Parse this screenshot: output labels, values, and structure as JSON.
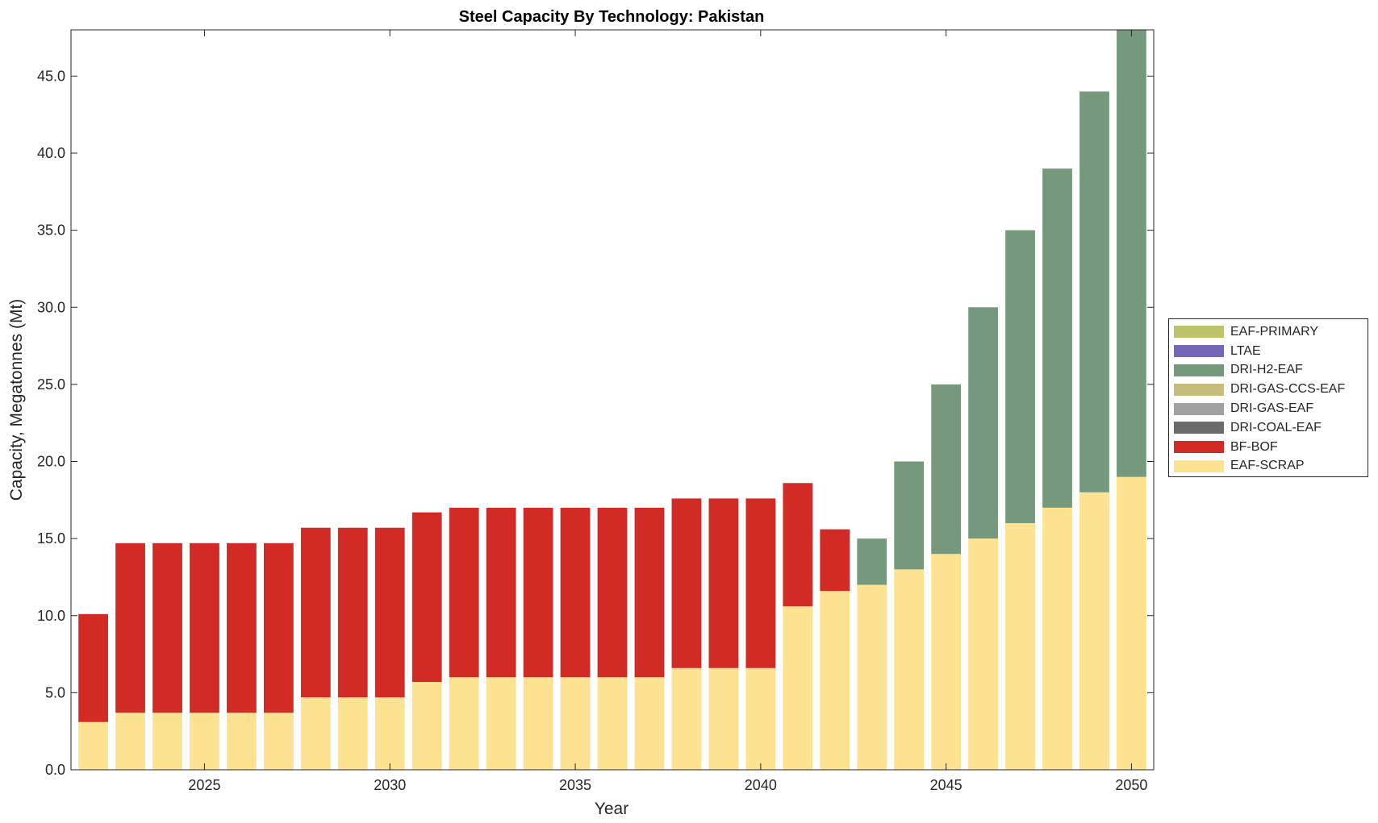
{
  "chart_data": {
    "type": "bar",
    "stacked": true,
    "title": "Steel Capacity By Technology: Pakistan",
    "xlabel": "Year",
    "ylabel": "Capacity, Megatonnes (Mt)",
    "x": [
      2022,
      2023,
      2024,
      2025,
      2026,
      2027,
      2028,
      2029,
      2030,
      2031,
      2032,
      2033,
      2034,
      2035,
      2036,
      2037,
      2038,
      2039,
      2040,
      2041,
      2042,
      2043,
      2044,
      2045,
      2046,
      2047,
      2048,
      2049,
      2050
    ],
    "xticks": [
      2025,
      2030,
      2035,
      2040,
      2045,
      2050
    ],
    "xticklabels": [
      "2025",
      "2030",
      "2035",
      "2040",
      "2045",
      "2050"
    ],
    "xlim": [
      2021.4,
      2050.6
    ],
    "ylim": [
      0,
      48
    ],
    "yticks": [
      0,
      5,
      10,
      15,
      20,
      25,
      30,
      35,
      40,
      45
    ],
    "yticklabels": [
      "0.0",
      "5.0",
      "10.0",
      "15.0",
      "20.0",
      "25.0",
      "30.0",
      "35.0",
      "40.0",
      "45.0"
    ],
    "grid": false,
    "legend_position": "right",
    "series": [
      {
        "name": "EAF-SCRAP",
        "color": "#fde292",
        "values": [
          3.1,
          3.7,
          3.7,
          3.7,
          3.7,
          3.7,
          4.7,
          4.7,
          4.7,
          5.7,
          6.0,
          6.0,
          6.0,
          6.0,
          6.0,
          6.0,
          6.6,
          6.6,
          6.6,
          10.6,
          11.6,
          12.0,
          13.0,
          14.0,
          15.0,
          16.0,
          17.0,
          18.0,
          19.0
        ]
      },
      {
        "name": "BF-BOF",
        "color": "#d22b25",
        "values": [
          7.0,
          11.0,
          11.0,
          11.0,
          11.0,
          11.0,
          11.0,
          11.0,
          11.0,
          11.0,
          11.0,
          11.0,
          11.0,
          11.0,
          11.0,
          11.0,
          11.0,
          11.0,
          11.0,
          8.0,
          4.0,
          0,
          0,
          0,
          0,
          0,
          0,
          0,
          0
        ]
      },
      {
        "name": "DRI-COAL-EAF",
        "color": "#6b6b6b",
        "values": [
          0,
          0,
          0,
          0,
          0,
          0,
          0,
          0,
          0,
          0,
          0,
          0,
          0,
          0,
          0,
          0,
          0,
          0,
          0,
          0,
          0,
          0,
          0,
          0,
          0,
          0,
          0,
          0,
          0
        ]
      },
      {
        "name": "DRI-GAS-EAF",
        "color": "#a0a0a0",
        "values": [
          0,
          0,
          0,
          0,
          0,
          0,
          0,
          0,
          0,
          0,
          0,
          0,
          0,
          0,
          0,
          0,
          0,
          0,
          0,
          0,
          0,
          0,
          0,
          0,
          0,
          0,
          0,
          0,
          0
        ]
      },
      {
        "name": "DRI-GAS-CCS-EAF",
        "color": "#c6bd7d",
        "values": [
          0,
          0,
          0,
          0,
          0,
          0,
          0,
          0,
          0,
          0,
          0,
          0,
          0,
          0,
          0,
          0,
          0,
          0,
          0,
          0,
          0,
          0,
          0,
          0,
          0,
          0,
          0,
          0,
          0
        ]
      },
      {
        "name": "DRI-H2-EAF",
        "color": "#76997d",
        "values": [
          0,
          0,
          0,
          0,
          0,
          0,
          0,
          0,
          0,
          0,
          0,
          0,
          0,
          0,
          0,
          0,
          0,
          0,
          0,
          0,
          0,
          3.0,
          7.0,
          11.0,
          15.0,
          19.0,
          22.0,
          26.0,
          29.0
        ]
      },
      {
        "name": "LTAE",
        "color": "#7466b9",
        "values": [
          0,
          0,
          0,
          0,
          0,
          0,
          0,
          0,
          0,
          0,
          0,
          0,
          0,
          0,
          0,
          0,
          0,
          0,
          0,
          0,
          0,
          0,
          0,
          0,
          0,
          0,
          0,
          0,
          0
        ]
      },
      {
        "name": "EAF-PRIMARY",
        "color": "#bcc369",
        "values": [
          0,
          0,
          0,
          0,
          0,
          0,
          0,
          0,
          0,
          0,
          0,
          0,
          0,
          0,
          0,
          0,
          0,
          0,
          0,
          0,
          0,
          0,
          0,
          0,
          0,
          0,
          0,
          0,
          0
        ]
      }
    ],
    "legend_order": [
      "EAF-PRIMARY",
      "LTAE",
      "DRI-H2-EAF",
      "DRI-GAS-CCS-EAF",
      "DRI-GAS-EAF",
      "DRI-COAL-EAF",
      "BF-BOF",
      "EAF-SCRAP"
    ]
  }
}
